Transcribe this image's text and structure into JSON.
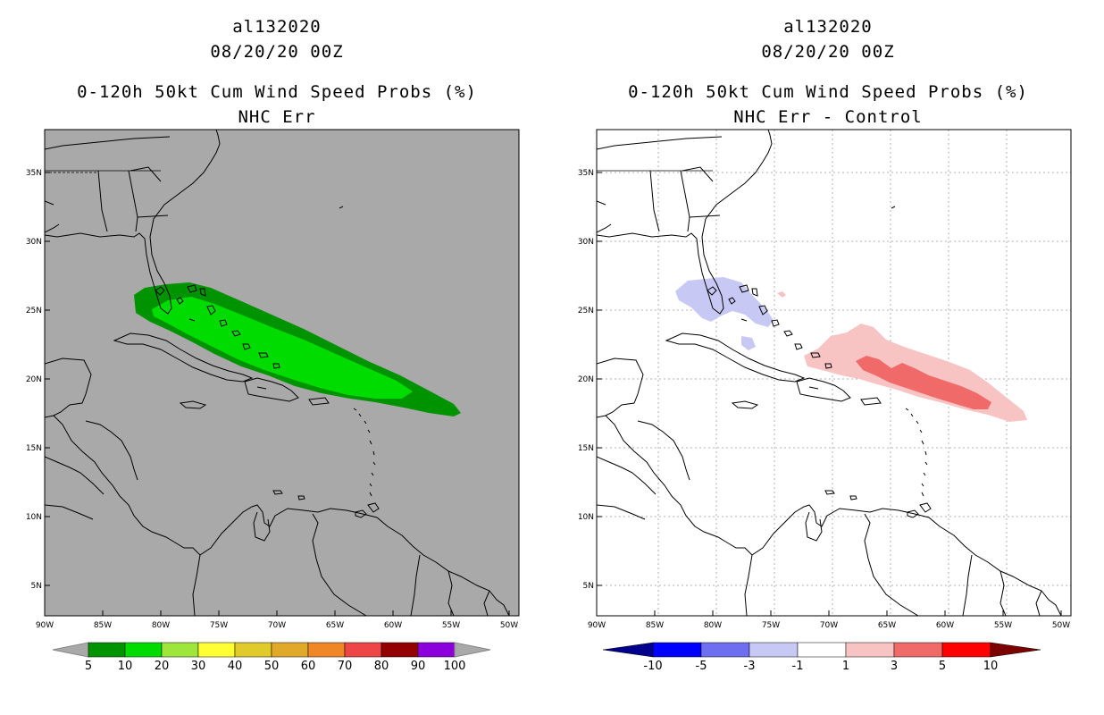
{
  "left_panel": {
    "title_line1": "al132020",
    "title_line2": "08/20/20 00Z",
    "title_line3": "0-120h 50kt Cum Wind Speed Probs (%)",
    "title_line4": "NHC Err",
    "background_color": "#a9a9a9",
    "colorbar": {
      "colors": [
        "#009300",
        "#00dc00",
        "#9ee63c",
        "#ffff33",
        "#e1cb2a",
        "#e1a92a",
        "#f08726",
        "#ee4646",
        "#930000",
        "#8c00dc"
      ],
      "labels": [
        "5",
        "10",
        "20",
        "30",
        "40",
        "50",
        "60",
        "70",
        "80",
        "90",
        "100"
      ],
      "extend_color": "#a9a9a9"
    }
  },
  "right_panel": {
    "title_line1": "al132020",
    "title_line2": "08/20/20 00Z",
    "title_line3": "0-120h 50kt Cum Wind Speed Probs (%)",
    "title_line4": "NHC Err - Control",
    "background_color": "#ffffff",
    "colorbar": {
      "colors": [
        "#0000ff",
        "#6e6ef0",
        "#c8c8f5",
        "#ffffff",
        "#f7c3c3",
        "#f06a6a",
        "#ff0000"
      ],
      "labels": [
        "-10",
        "-5",
        "-3",
        "-1",
        "1",
        "3",
        "5",
        "10"
      ],
      "extend_low_color": "#00008c",
      "extend_high_color": "#7d0000"
    }
  },
  "axes": {
    "lon_labels": [
      "90W",
      "85W",
      "80W",
      "75W",
      "70W",
      "65W",
      "60W",
      "55W",
      "50W"
    ],
    "lat_labels": [
      "35N",
      "30N",
      "25N",
      "20N",
      "15N",
      "10N",
      "5N"
    ]
  }
}
